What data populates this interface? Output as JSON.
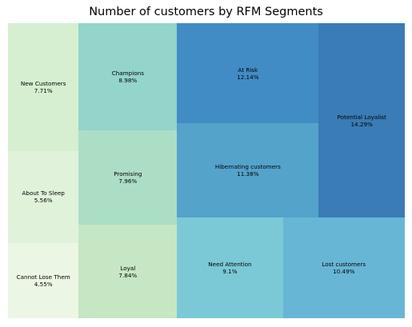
{
  "chart_data": {
    "type": "treemap",
    "title": "Number of customers by RFM Segments",
    "segments": [
      {
        "label": "Cannot Lose Them",
        "value": 4.55,
        "pct_text": "4.55%",
        "color": "#ecf6e5"
      },
      {
        "label": "About To Sleep",
        "value": 5.56,
        "pct_text": "5.56%",
        "color": "#e1f2db"
      },
      {
        "label": "New Customers",
        "value": 7.71,
        "pct_text": "7.71%",
        "color": "#d5efd0"
      },
      {
        "label": "Loyal",
        "value": 7.84,
        "pct_text": "7.84%",
        "color": "#c6e7c4"
      },
      {
        "label": "Promising",
        "value": 7.96,
        "pct_text": "7.96%",
        "color": "#acdec6"
      },
      {
        "label": "Champions",
        "value": 8.98,
        "pct_text": "8.98%",
        "color": "#93d4cb"
      },
      {
        "label": "Need Attention",
        "value": 9.1,
        "pct_text": "9.1%",
        "color": "#7bc9d7"
      },
      {
        "label": "Lost customers",
        "value": 10.49,
        "pct_text": "10.49%",
        "color": "#68b6d6"
      },
      {
        "label": "Hibernating customers",
        "value": 11.38,
        "pct_text": "11.38%",
        "color": "#54a3cb"
      },
      {
        "label": "At Risk",
        "value": 12.14,
        "pct_text": "12.14%",
        "color": "#428cc5"
      },
      {
        "label": "Potential Loyalist",
        "value": 14.29,
        "pct_text": "14.29%",
        "color": "#3a7cb6"
      }
    ]
  }
}
